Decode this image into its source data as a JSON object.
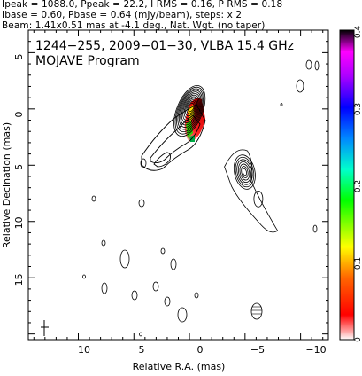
{
  "header": {
    "line1": "Ipeak = 1088.0, Ppeak = 22.2, I RMS = 0.16, P RMS = 0.18",
    "line2": "Ibase = 0.60, Pbase = 0.64 (mJy/beam), steps: x 2",
    "line3": "Beam: 1.41x0.51 mas at -4.1 deg., Nat. Wgt. (no taper)"
  },
  "plot": {
    "title_line1": "1244−255, 2009−01−30, VLBA 15.4 GHz",
    "title_line2": "MOJAVE Program"
  },
  "chart_data": {
    "type": "heatmap",
    "title": "1244−255, 2009−01−30, VLBA 15.4 GHz",
    "subtitle": "MOJAVE Program",
    "xlabel": "Relative R.A. (mas)",
    "ylabel": "Relative Decination (mas)",
    "xlim": [
      14.5,
      -12.5
    ],
    "ylim": [
      -20.5,
      7
    ],
    "x_ticks": [
      10,
      5,
      0,
      -5,
      -10
    ],
    "x_tick_labels": [
      "10",
      "5",
      "0",
      "−5",
      "−10"
    ],
    "y_ticks": [
      5,
      0,
      -5,
      -10,
      -15
    ],
    "y_tick_labels": [
      "5",
      "0",
      "−5",
      "−10",
      "−15"
    ],
    "colorbar": {
      "min": 0,
      "max": 0.4,
      "ticks": [
        0,
        0.1,
        0.2,
        0.3,
        0.4
      ],
      "tick_labels": [
        "0",
        "0.1",
        "0.2",
        "0.3",
        "0.4"
      ],
      "colors": [
        "#ffffff",
        "#ff0000",
        "#ff8800",
        "#ffff00",
        "#00ff00",
        "#00ffff",
        "#0000ff",
        "#ff00ff",
        "#000000"
      ]
    },
    "core": {
      "x": 0,
      "y": 0,
      "contour_levels": 12
    },
    "jet_components": [
      {
        "name": "",
        "x": 4.4,
        "y": -3.2
      },
      {
        "name": "",
        "x": -4.9,
        "y": -5.3
      },
      {
        "name": "",
        "x": -6.2,
        "y": -8.0
      }
    ],
    "beam": {
      "major_mas": 1.41,
      "minor_mas": 0.51,
      "pa_deg": -4.1,
      "x": 13.2,
      "y": -18.8
    }
  }
}
